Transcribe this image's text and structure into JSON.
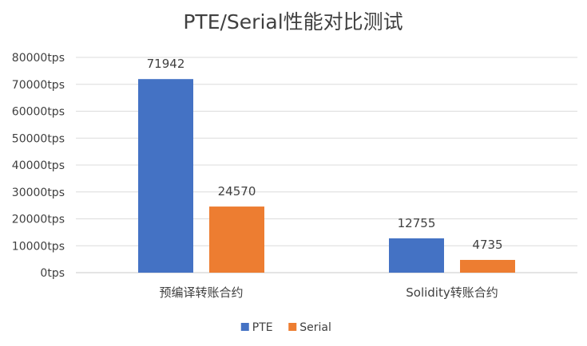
{
  "chart_data": {
    "type": "bar",
    "title": "PTE/Serial性能对比测试",
    "xlabel": "",
    "ylabel": "",
    "categories": [
      "预编译转账合约",
      "Solidity转账合约"
    ],
    "series": [
      {
        "name": "PTE",
        "values": [
          71942,
          12755
        ],
        "color": "#4472C4"
      },
      {
        "name": "Serial",
        "values": [
          24570,
          4735
        ],
        "color": "#ED7D31"
      }
    ],
    "ylim": [
      0,
      80000
    ],
    "yticks": [
      0,
      10000,
      20000,
      30000,
      40000,
      50000,
      60000,
      70000,
      80000
    ],
    "ytick_labels": [
      "0tps",
      "10000tps",
      "20000tps",
      "30000tps",
      "40000tps",
      "50000tps",
      "60000tps",
      "70000tps",
      "80000tps"
    ],
    "data_labels": true,
    "grid": true,
    "legend_position": "bottom"
  }
}
